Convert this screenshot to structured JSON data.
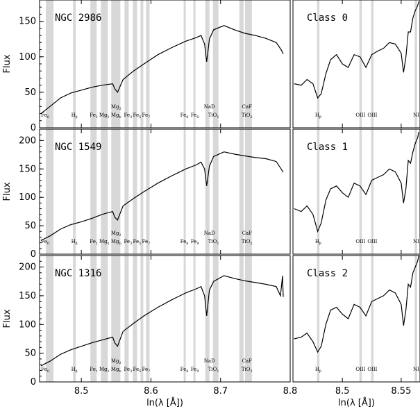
{
  "chart_data": [
    {
      "type": "line",
      "title": "NGC 2986",
      "xlabel": "",
      "ylabel": "Flux",
      "xlim": [
        8.44,
        8.8
      ],
      "ylim": [
        0,
        180
      ],
      "xticks": [],
      "yticks": [
        0,
        50,
        100,
        150
      ],
      "series": [
        {
          "x": [
            8.442,
            8.455,
            8.47,
            8.485,
            8.5,
            8.515,
            8.53,
            8.545,
            8.548,
            8.552,
            8.56,
            8.575,
            8.59,
            8.61,
            8.63,
            8.65,
            8.665,
            8.672,
            8.677,
            8.68,
            8.684,
            8.69,
            8.705,
            8.72,
            8.735,
            8.75,
            8.765,
            8.78,
            8.787,
            8.79
          ],
          "values": [
            20,
            30,
            42,
            49,
            53,
            57,
            60,
            62,
            55,
            50,
            68,
            80,
            90,
            103,
            113,
            122,
            127,
            130,
            118,
            93,
            125,
            138,
            144,
            138,
            133,
            130,
            126,
            120,
            110,
            104
          ]
        }
      ]
    },
    {
      "type": "line",
      "title": "Class 0",
      "xlabel": "",
      "ylabel": "",
      "xlim": [
        8.458,
        8.566
      ],
      "ylim": [
        0,
        180
      ],
      "xticks": [],
      "yticks": [],
      "series": [
        {
          "x": [
            8.459,
            8.465,
            8.47,
            8.475,
            8.479,
            8.482,
            8.486,
            8.49,
            8.495,
            8.5,
            8.505,
            8.51,
            8.515,
            8.52,
            8.525,
            8.53,
            8.535,
            8.54,
            8.545,
            8.55,
            8.552,
            8.554,
            8.556,
            8.558,
            8.56,
            8.562,
            8.564,
            8.565
          ],
          "values": [
            62,
            60,
            68,
            62,
            42,
            48,
            76,
            96,
            103,
            90,
            85,
            103,
            100,
            85,
            103,
            108,
            112,
            120,
            118,
            105,
            78,
            100,
            135,
            135,
            155,
            165,
            172,
            178
          ]
        }
      ]
    },
    {
      "type": "line",
      "title": "NGC 1549",
      "xlabel": "",
      "ylabel": "Flux",
      "xlim": [
        8.44,
        8.8
      ],
      "ylim": [
        0,
        220
      ],
      "xticks": [],
      "yticks": [
        0,
        50,
        100,
        150,
        200
      ],
      "series": [
        {
          "x": [
            8.442,
            8.455,
            8.47,
            8.485,
            8.5,
            8.515,
            8.53,
            8.545,
            8.548,
            8.552,
            8.56,
            8.575,
            8.59,
            8.61,
            8.63,
            8.65,
            8.665,
            8.672,
            8.677,
            8.68,
            8.684,
            8.69,
            8.705,
            8.72,
            8.735,
            8.75,
            8.765,
            8.78,
            8.787,
            8.79
          ],
          "values": [
            24,
            32,
            44,
            52,
            57,
            63,
            70,
            75,
            65,
            60,
            85,
            98,
            110,
            125,
            138,
            150,
            157,
            162,
            150,
            120,
            155,
            172,
            180,
            176,
            173,
            170,
            168,
            163,
            150,
            144
          ]
        }
      ]
    },
    {
      "type": "line",
      "title": "Class 1",
      "xlabel": "",
      "ylabel": "",
      "xlim": [
        8.458,
        8.566
      ],
      "ylim": [
        0,
        220
      ],
      "xticks": [],
      "yticks": [],
      "series": [
        {
          "x": [
            8.459,
            8.465,
            8.47,
            8.475,
            8.479,
            8.482,
            8.486,
            8.49,
            8.495,
            8.5,
            8.505,
            8.51,
            8.515,
            8.52,
            8.525,
            8.53,
            8.535,
            8.54,
            8.545,
            8.55,
            8.552,
            8.554,
            8.556,
            8.558,
            8.56,
            8.562,
            8.564,
            8.565
          ],
          "values": [
            80,
            75,
            85,
            70,
            40,
            55,
            95,
            115,
            120,
            108,
            100,
            125,
            120,
            105,
            130,
            135,
            140,
            150,
            145,
            125,
            90,
            115,
            165,
            160,
            180,
            195,
            205,
            215
          ]
        }
      ]
    },
    {
      "type": "line",
      "title": "NGC 1316",
      "xlabel": "ln(λ [Å])",
      "ylabel": "Flux",
      "xlim": [
        8.44,
        8.8
      ],
      "ylim": [
        0,
        220
      ],
      "xticks": [
        8.5,
        8.6,
        8.7,
        8.8
      ],
      "yticks": [
        0,
        50,
        100,
        150,
        200
      ],
      "series": [
        {
          "x": [
            8.442,
            8.455,
            8.47,
            8.485,
            8.5,
            8.515,
            8.53,
            8.545,
            8.548,
            8.552,
            8.56,
            8.575,
            8.59,
            8.61,
            8.63,
            8.65,
            8.665,
            8.672,
            8.677,
            8.68,
            8.684,
            8.69,
            8.705,
            8.72,
            8.735,
            8.75,
            8.765,
            8.78,
            8.786,
            8.789,
            8.79
          ],
          "values": [
            28,
            36,
            48,
            56,
            62,
            68,
            73,
            78,
            68,
            62,
            88,
            102,
            115,
            130,
            143,
            155,
            162,
            166,
            150,
            115,
            160,
            175,
            185,
            180,
            176,
            173,
            170,
            166,
            150,
            185,
            148
          ]
        }
      ]
    },
    {
      "type": "line",
      "title": "Class 2",
      "xlabel": "ln(λ [Å])",
      "ylabel": "",
      "xlim": [
        8.458,
        8.566
      ],
      "ylim": [
        0,
        220
      ],
      "xticks": [
        8.5,
        8.55
      ],
      "yticks": [],
      "series": [
        {
          "x": [
            8.459,
            8.465,
            8.47,
            8.475,
            8.479,
            8.482,
            8.486,
            8.49,
            8.495,
            8.5,
            8.505,
            8.51,
            8.515,
            8.52,
            8.525,
            8.53,
            8.535,
            8.54,
            8.545,
            8.55,
            8.552,
            8.554,
            8.556,
            8.558,
            8.56,
            8.562,
            8.564,
            8.565
          ],
          "values": [
            75,
            78,
            85,
            70,
            52,
            62,
            100,
            125,
            130,
            118,
            110,
            135,
            130,
            115,
            140,
            145,
            150,
            160,
            155,
            135,
            98,
            125,
            170,
            165,
            190,
            200,
            210,
            220
          ]
        }
      ]
    }
  ],
  "line_labels_left": [
    {
      "label": "Fe",
      "sub": "0",
      "x": 8.448
    },
    {
      "label": "H",
      "sub": "β",
      "x": 8.49
    },
    {
      "label": "Fe",
      "sub": "1",
      "x": 8.518
    },
    {
      "label": "Mg",
      "sub": "1",
      "x": 8.533
    },
    {
      "label": "Mg",
      "sub": "b",
      "x": 8.55
    },
    {
      "label": "Fe",
      "sub": "3",
      "x": 8.567
    },
    {
      "label": "Fe",
      "sub": "5",
      "x": 8.58
    },
    {
      "label": "Fe",
      "sub": "7",
      "x": 8.593
    },
    {
      "label": "Fe",
      "sub": "8",
      "x": 8.648
    },
    {
      "label": "Fe",
      "sub": "9",
      "x": 8.663
    },
    {
      "label": "NaD",
      "sub": "",
      "x": 8.684,
      "row": "upper"
    },
    {
      "label": "TiO",
      "sub": "1",
      "x": 8.69
    },
    {
      "label": "CaF",
      "sub": "",
      "x": 8.738,
      "row": "upper"
    },
    {
      "label": "TiO",
      "sub": "2",
      "x": 8.738
    },
    {
      "label": "Mg",
      "sub": "2",
      "x": 8.55,
      "row": "upper"
    }
  ],
  "line_labels_right": [
    {
      "label": "H",
      "sub": "β",
      "x": 8.4795
    },
    {
      "label": "OIII",
      "sub": "",
      "x": 8.5155
    },
    {
      "label": "OIII",
      "sub": "",
      "x": 8.5255
    },
    {
      "label": "NI",
      "sub": "",
      "x": 8.5627
    }
  ],
  "bands_left": [
    [
      8.449,
      8.46
    ],
    [
      8.488,
      8.492
    ],
    [
      8.513,
      8.522
    ],
    [
      8.528,
      8.538
    ],
    [
      8.543,
      8.556
    ],
    [
      8.562,
      8.568
    ],
    [
      8.574,
      8.58
    ],
    [
      8.585,
      8.589
    ],
    [
      8.593,
      8.598
    ],
    [
      8.647,
      8.65
    ],
    [
      8.661,
      8.664
    ],
    [
      8.678,
      8.684
    ],
    [
      8.689,
      8.697
    ],
    [
      8.727,
      8.733
    ],
    [
      8.735,
      8.745
    ]
  ],
  "bands_right": [
    [
      8.4785,
      8.4805
    ],
    [
      8.5145,
      8.5165
    ],
    [
      8.5245,
      8.5265
    ],
    [
      8.5615,
      8.5635
    ]
  ],
  "colors": {
    "band": "#d8d8d8",
    "line": "#000000",
    "axis": "#000000"
  }
}
